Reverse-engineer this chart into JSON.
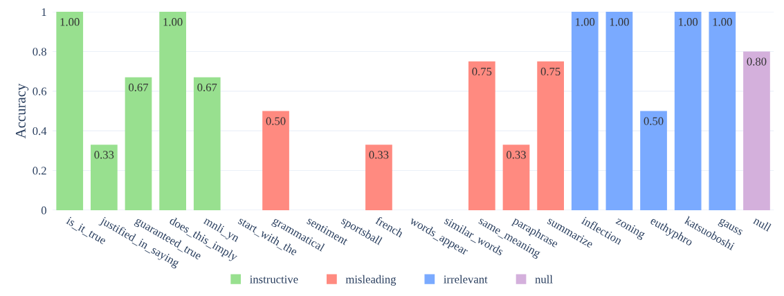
{
  "chart_data": {
    "type": "bar",
    "ylabel": "Accuracy",
    "categories": [
      "is_it_true",
      "justified_in_saying",
      "guaranteed_true",
      "does_this_imply",
      "mnli_yn",
      "start_with_the",
      "grammatical",
      "sentiment",
      "sportsball",
      "french",
      "words_appear",
      "similar_words",
      "same_meaning",
      "paraphrase",
      "summarize",
      "inflection",
      "zoning",
      "euthyphro",
      "katsuoboshi",
      "gauss",
      "null"
    ],
    "series": [
      {
        "name": "instructive",
        "color": "#98e08f",
        "values": [
          1.0,
          0.33,
          0.67,
          1.0,
          0.67,
          0,
          null,
          null,
          null,
          null,
          null,
          null,
          null,
          null,
          null,
          null,
          null,
          null,
          null,
          null,
          null
        ],
        "value_labels": [
          "1.00",
          "0.33",
          "0.67",
          "1.00",
          "0.67",
          null,
          null,
          null,
          null,
          null,
          null,
          null,
          null,
          null,
          null,
          null,
          null,
          null,
          null,
          null,
          null
        ]
      },
      {
        "name": "misleading",
        "color": "#ff8a80",
        "values": [
          null,
          null,
          null,
          null,
          null,
          null,
          0.5,
          0,
          0,
          0.33,
          0,
          0,
          0.75,
          0.33,
          0.75,
          null,
          null,
          null,
          null,
          null,
          null
        ],
        "value_labels": [
          null,
          null,
          null,
          null,
          null,
          null,
          "0.50",
          null,
          null,
          "0.33",
          null,
          null,
          "0.75",
          "0.33",
          "0.75",
          null,
          null,
          null,
          null,
          null,
          null
        ]
      },
      {
        "name": "irrelevant",
        "color": "#7aaaff",
        "values": [
          null,
          null,
          null,
          null,
          null,
          null,
          null,
          null,
          null,
          null,
          null,
          null,
          null,
          null,
          null,
          1.0,
          1.0,
          0.5,
          1.0,
          1.0,
          null
        ],
        "value_labels": [
          null,
          null,
          null,
          null,
          null,
          null,
          null,
          null,
          null,
          null,
          null,
          null,
          null,
          null,
          null,
          "1.00",
          "1.00",
          "0.50",
          "1.00",
          "1.00",
          null
        ]
      },
      {
        "name": "null",
        "color": "#d4b0dc",
        "values": [
          null,
          null,
          null,
          null,
          null,
          null,
          null,
          null,
          null,
          null,
          null,
          null,
          null,
          null,
          null,
          null,
          null,
          null,
          null,
          null,
          0.8
        ],
        "value_labels": [
          null,
          null,
          null,
          null,
          null,
          null,
          null,
          null,
          null,
          null,
          null,
          null,
          null,
          null,
          null,
          null,
          null,
          null,
          null,
          null,
          "0.80"
        ]
      }
    ],
    "ylim": [
      0,
      1
    ],
    "yticks": [
      0,
      0.2,
      0.4,
      0.6,
      0.8,
      1
    ],
    "grid": "y",
    "legend": "bottom"
  }
}
